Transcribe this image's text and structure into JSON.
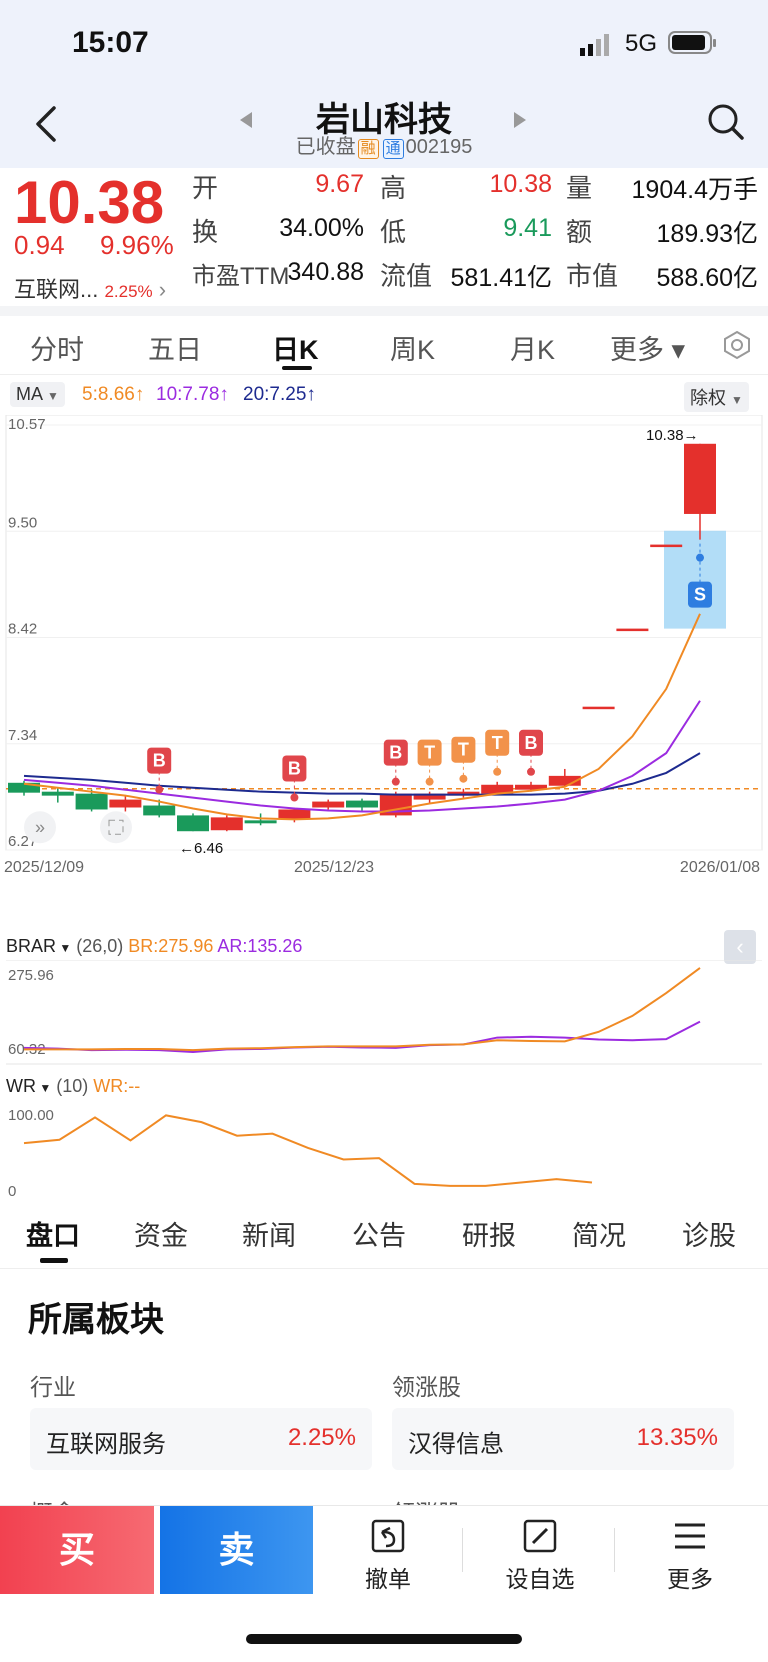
{
  "status_bar": {
    "time": "15:07",
    "network": "5G"
  },
  "header": {
    "title": "岩山科技",
    "state": "已收盘",
    "tag_rong": "融",
    "tag_tong": "通",
    "code": "002195"
  },
  "quote": {
    "price": "10.38",
    "change": "0.94",
    "change_pct": "9.96%",
    "sector": "互联网...",
    "sector_pct": "2.25%",
    "open_label": "开",
    "open": "9.67",
    "high_label": "高",
    "high": "10.38",
    "volume_label": "量",
    "volume": "1904.4万手",
    "turnover_label": "换",
    "turnover": "34.00%",
    "low_label": "低",
    "low": "9.41",
    "amount_label": "额",
    "amount": "189.93亿",
    "pe_label": "市盈TTM",
    "pe": "340.88",
    "float_label": "流值",
    "float_value": "581.41亿",
    "mktcap_label": "市值",
    "mktcap": "588.60亿"
  },
  "chart_tabs": [
    "分时",
    "五日",
    "日K",
    "周K",
    "月K",
    "更多 ▾"
  ],
  "ma": {
    "label": "MA",
    "ma5": "5:8.66",
    "ma10": "10:7.78",
    "ma20": "20:7.25",
    "adjust": "除权"
  },
  "chart_data": {
    "type": "candlestick",
    "y_ticks": [
      "10.57",
      "9.50",
      "8.42",
      "7.34",
      "6.27"
    ],
    "ylim": [
      6.27,
      10.57
    ],
    "x_ticks": [
      "2025/12/09",
      "2025/12/23",
      "2026/01/08"
    ],
    "high_label": "10.38",
    "low_label": "6.46",
    "candles": [
      {
        "o": 6.95,
        "c": 6.85,
        "h": 6.97,
        "l": 6.82
      },
      {
        "o": 6.86,
        "c": 6.82,
        "h": 6.9,
        "l": 6.75
      },
      {
        "o": 6.84,
        "c": 6.68,
        "h": 6.88,
        "l": 6.66
      },
      {
        "o": 6.7,
        "c": 6.78,
        "h": 6.82,
        "l": 6.66
      },
      {
        "o": 6.72,
        "c": 6.62,
        "h": 6.78,
        "l": 6.6
      },
      {
        "o": 6.62,
        "c": 6.46,
        "h": 6.64,
        "l": 6.46
      },
      {
        "o": 6.47,
        "c": 6.6,
        "h": 6.62,
        "l": 6.46
      },
      {
        "o": 6.57,
        "c": 6.54,
        "h": 6.64,
        "l": 6.52
      },
      {
        "o": 6.58,
        "c": 6.68,
        "h": 6.7,
        "l": 6.55
      },
      {
        "o": 6.7,
        "c": 6.76,
        "h": 6.78,
        "l": 6.68
      },
      {
        "o": 6.77,
        "c": 6.7,
        "h": 6.79,
        "l": 6.67
      },
      {
        "o": 6.62,
        "c": 6.84,
        "h": 6.86,
        "l": 6.6
      },
      {
        "o": 6.78,
        "c": 6.84,
        "h": 6.86,
        "l": 6.74
      },
      {
        "o": 6.82,
        "c": 6.86,
        "h": 6.89,
        "l": 6.8
      },
      {
        "o": 6.84,
        "c": 6.93,
        "h": 6.96,
        "l": 6.83
      },
      {
        "o": 6.88,
        "c": 6.93,
        "h": 6.96,
        "l": 6.86
      },
      {
        "o": 6.92,
        "c": 7.02,
        "h": 7.09,
        "l": 6.91
      },
      {
        "o": 7.72,
        "c": 7.72,
        "h": 7.72,
        "l": 7.72
      },
      {
        "o": 8.51,
        "c": 8.51,
        "h": 8.51,
        "l": 8.51
      },
      {
        "o": 9.36,
        "c": 9.36,
        "h": 9.36,
        "l": 9.36
      },
      {
        "o": 9.67,
        "c": 10.38,
        "h": 10.38,
        "l": 9.41
      }
    ],
    "ma5": [
      6.94,
      6.9,
      6.86,
      6.82,
      6.76,
      6.69,
      6.63,
      6.59,
      6.58,
      6.59,
      6.62,
      6.68,
      6.74,
      6.79,
      6.84,
      6.87,
      6.91,
      7.09,
      7.42,
      7.9,
      8.66
    ],
    "ma10": [
      6.98,
      6.95,
      6.92,
      6.88,
      6.84,
      6.8,
      6.76,
      6.72,
      6.69,
      6.67,
      6.66,
      6.66,
      6.67,
      6.69,
      6.71,
      6.74,
      6.78,
      6.87,
      7.02,
      7.25,
      7.78
    ],
    "ma20": [
      7.02,
      7.0,
      6.98,
      6.95,
      6.92,
      6.9,
      6.88,
      6.86,
      6.85,
      6.84,
      6.84,
      6.83,
      6.83,
      6.83,
      6.83,
      6.83,
      6.84,
      6.87,
      6.94,
      7.05,
      7.25
    ],
    "signals": [
      {
        "i": 4,
        "label": "B"
      },
      {
        "i": 8,
        "label": "B"
      },
      {
        "i": 11,
        "label": "B"
      },
      {
        "i": 12,
        "label": "T"
      },
      {
        "i": 13,
        "label": "T"
      },
      {
        "i": 14,
        "label": "T"
      },
      {
        "i": 15,
        "label": "B"
      },
      {
        "i": 20,
        "label": "S"
      }
    ]
  },
  "brar": {
    "label": "BRAR",
    "params": "(26,0)",
    "br": "BR:275.96",
    "ar": "AR:135.26",
    "ymax": "275.96",
    "ymin": "60.32",
    "br_values": [
      62,
      62,
      62,
      63,
      63,
      60,
      64,
      65,
      68,
      70,
      70,
      70,
      74,
      75,
      86,
      84,
      83,
      108,
      150,
      210,
      276
    ],
    "ar_values": [
      66,
      64,
      60,
      61,
      60,
      55,
      62,
      63,
      67,
      69,
      67,
      66,
      73,
      75,
      93,
      95,
      93,
      88,
      86,
      89,
      135
    ]
  },
  "wr": {
    "label": "WR",
    "params": "(10)",
    "wr": "WR:--",
    "ymax": "100.00",
    "ymin": "0",
    "values": [
      72,
      77,
      110,
      76,
      113,
      103,
      83,
      86,
      65,
      48,
      50,
      12,
      9,
      9,
      14,
      19,
      14
    ]
  },
  "bottom_tabs": [
    "盘口",
    "资金",
    "新闻",
    "公告",
    "研报",
    "简况",
    "诊股"
  ],
  "section": {
    "title": "所属板块",
    "industry_label": "行业",
    "industry_name": "互联网服务",
    "industry_pct": "2.25%",
    "leader_label": "领涨股",
    "leader_name": "汉得信息",
    "leader_pct": "13.35%",
    "concept_label": "概念",
    "leader_label2": "领涨股"
  },
  "actions": {
    "buy": "买",
    "sell": "卖",
    "cancel": "撤单",
    "watch": "设自选",
    "more": "更多"
  },
  "colors": {
    "up": "#e4302c",
    "down": "#1a9a5b",
    "ma5": "#f08a24",
    "ma10": "#9b2be0",
    "ma20": "#1d2a8f",
    "buy_bg": "#f2525a",
    "sell_bg": "#1e7ee6"
  }
}
